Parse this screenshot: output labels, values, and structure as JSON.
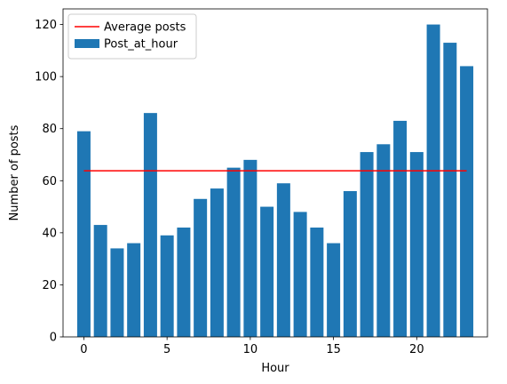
{
  "chart_data": {
    "type": "bar",
    "xlabel": "Hour",
    "ylabel": "Number of posts",
    "xlim": [
      -1.25,
      24.25
    ],
    "ylim": [
      0,
      126
    ],
    "xticks": [
      0,
      5,
      10,
      15,
      20
    ],
    "yticks": [
      0,
      20,
      40,
      60,
      80,
      100,
      120
    ],
    "grid": false,
    "legend_position": "top-left",
    "series": [
      {
        "name": "Post_at_hour",
        "type": "bar",
        "color": "#1f77b4",
        "x": [
          0,
          1,
          2,
          3,
          4,
          5,
          6,
          7,
          8,
          9,
          10,
          11,
          12,
          13,
          14,
          15,
          16,
          17,
          18,
          19,
          20,
          21,
          22,
          23
        ],
        "values": [
          79,
          43,
          34,
          36,
          86,
          39,
          42,
          53,
          57,
          65,
          68,
          50,
          59,
          48,
          42,
          36,
          56,
          71,
          74,
          83,
          71,
          120,
          113,
          104
        ]
      },
      {
        "name": "Average posts",
        "type": "line",
        "color": "#ff0000",
        "x": [
          0,
          23
        ],
        "values": [
          63.8,
          63.8
        ]
      }
    ]
  }
}
